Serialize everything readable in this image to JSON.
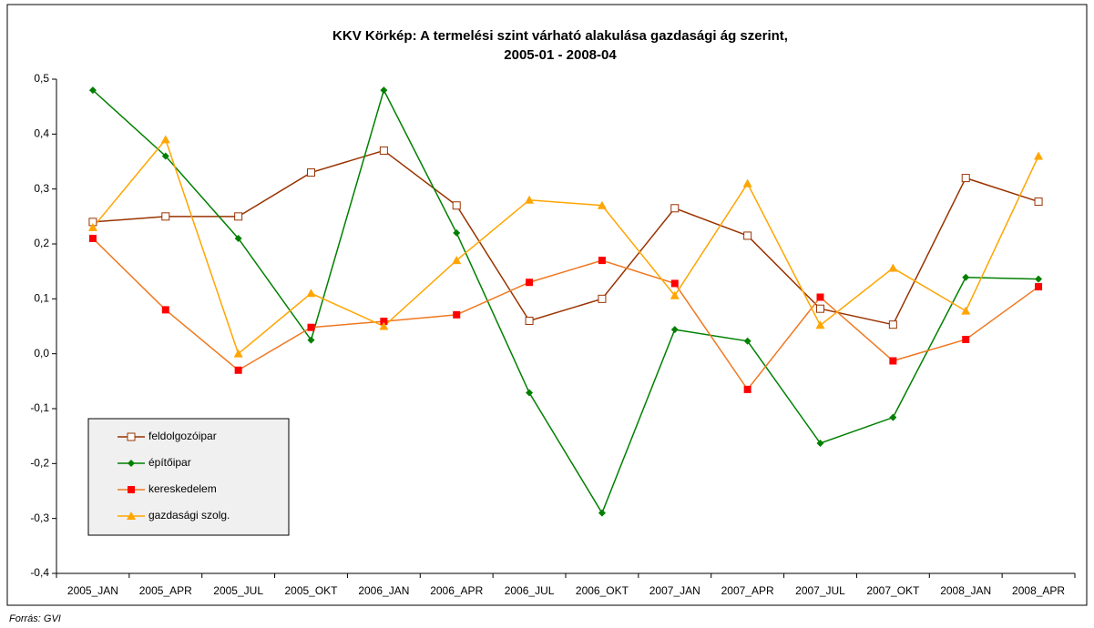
{
  "chart_data": {
    "type": "line",
    "title": [
      "KKV Körkép: A termelési szint várható alakulása gazdasági ág szerint,",
      "2005-01 - 2008-04"
    ],
    "source": "Forrás: GVI",
    "categories": [
      "2005_JAN",
      "2005_APR",
      "2005_JUL",
      "2005_OKT",
      "2006_JAN",
      "2006_APR",
      "2006_JUL",
      "2006_OKT",
      "2007_JAN",
      "2007_APR",
      "2007_JUL",
      "2007_OKT",
      "2008_JAN",
      "2008_APR"
    ],
    "series": [
      {
        "name": "feldolgozóipar",
        "color": "#993300",
        "marker_color": "#993300",
        "marker": "hollow-square",
        "values": [
          0.24,
          0.25,
          0.25,
          0.33,
          0.37,
          0.27,
          0.06,
          0.1,
          0.265,
          0.215,
          0.082,
          0.053,
          0.32,
          0.277
        ]
      },
      {
        "name": "építőipar",
        "color": "#008000",
        "marker_color": "#008000",
        "marker": "diamond",
        "values": [
          0.48,
          0.36,
          0.21,
          0.025,
          0.48,
          0.22,
          -0.071,
          -0.29,
          0.044,
          0.023,
          -0.163,
          -0.116,
          0.139,
          0.136
        ]
      },
      {
        "name": "kereskedelem",
        "color": "#f07820",
        "marker_color": "#ff0000",
        "marker": "square",
        "values": [
          0.21,
          0.08,
          -0.03,
          0.048,
          0.059,
          0.071,
          0.13,
          0.17,
          0.128,
          -0.065,
          0.103,
          -0.013,
          0.026,
          0.122
        ]
      },
      {
        "name": "gazdasági szolg.",
        "color": "#ffa500",
        "marker_color": "#ffa500",
        "marker": "triangle",
        "values": [
          0.23,
          0.39,
          0.0,
          0.11,
          0.05,
          0.17,
          0.28,
          0.27,
          0.106,
          0.31,
          0.052,
          0.156,
          0.078,
          0.36
        ]
      }
    ],
    "ylim": [
      -0.4,
      0.5
    ],
    "yticks": [
      {
        "value": -0.4,
        "label": "-0,4"
      },
      {
        "value": -0.3,
        "label": "-0,3"
      },
      {
        "value": -0.2,
        "label": "-0,2"
      },
      {
        "value": -0.1,
        "label": "-0,1"
      },
      {
        "value": 0,
        "label": "0,0"
      },
      {
        "value": 0.1,
        "label": "0,1"
      },
      {
        "value": 0.2,
        "label": "0,2"
      },
      {
        "value": 0.3,
        "label": "0,3"
      },
      {
        "value": 0.4,
        "label": "0,4"
      },
      {
        "value": 0.5,
        "label": "0,5"
      }
    ],
    "grid": false,
    "legend": "lower-left"
  }
}
